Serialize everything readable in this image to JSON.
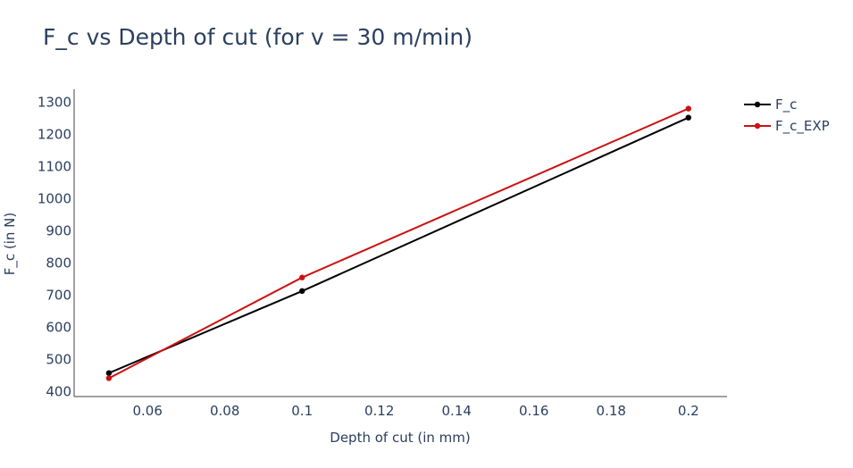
{
  "chart_data": {
    "type": "line",
    "title": "F_c vs Depth of cut (for v = 30 m/min)",
    "xlabel": "Depth of cut (in mm)",
    "ylabel": "F_c (in N)",
    "xlim": [
      0.041,
      0.21
    ],
    "ylim": [
      385,
      1340
    ],
    "x_ticks": [
      0.06,
      0.08,
      0.1,
      0.12,
      0.14,
      0.16,
      0.18,
      0.2
    ],
    "x_tick_labels": [
      "0.06",
      "0.08",
      "0.1",
      "0.12",
      "0.14",
      "0.16",
      "0.18",
      "0.2"
    ],
    "y_ticks": [
      400,
      500,
      600,
      700,
      800,
      900,
      1000,
      1100,
      1200,
      1300
    ],
    "y_tick_labels": [
      "400",
      "500",
      "600",
      "700",
      "800",
      "900",
      "1000",
      "1100",
      "1200",
      "1300"
    ],
    "grid": false,
    "legend_position": "top-right",
    "series": [
      {
        "name": "F_c",
        "color": "#000000",
        "x": [
          0.05,
          0.1,
          0.2
        ],
        "y": [
          458,
          713,
          1252
        ]
      },
      {
        "name": "F_c_EXP",
        "color": "#cc1111",
        "x": [
          0.05,
          0.1,
          0.2
        ],
        "y": [
          442,
          755,
          1280
        ]
      }
    ]
  }
}
